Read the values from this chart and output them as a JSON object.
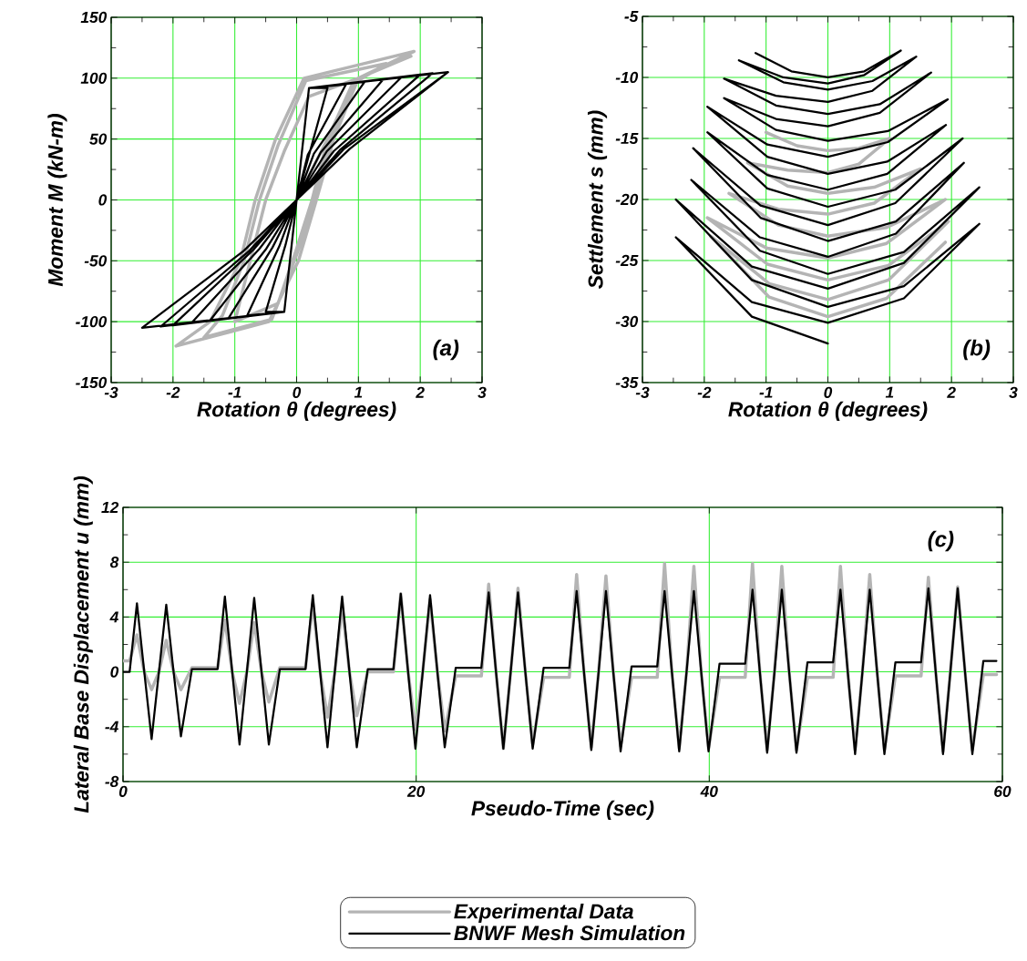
{
  "chart_data": [
    {
      "type": "line",
      "xlabel": "Rotation θ (degrees)",
      "ylabel": "Moment M (kN-m)",
      "xlim": [
        -3,
        3
      ],
      "ylim": [
        -150,
        150
      ],
      "xticks": [
        -3,
        -2,
        -1,
        0,
        1,
        2,
        3
      ],
      "yticks": [
        -150,
        -100,
        -50,
        0,
        50,
        100,
        150
      ],
      "grid": true,
      "annotations": [
        "(a)"
      ],
      "series": [
        {
          "color": "#b4b4b4",
          "x": [
            0,
            0.5,
            1.0,
            0.2,
            -0.2,
            -0.5,
            -0.75,
            -1.0,
            -0.3,
            0.0,
            0.25,
            0.5,
            0.9,
            1.45,
            0.15,
            -0.3,
            -0.6,
            -0.85,
            -1.2,
            -1.5,
            -0.4,
            0.0,
            0.3,
            0.55,
            1.0,
            1.9,
            0.12,
            -0.34,
            -0.67,
            -0.91,
            -1.4,
            -1.95,
            -0.45,
            0.03,
            0.32,
            0.6,
            1.0,
            1.85
          ],
          "values": [
            0,
            50,
            100,
            85,
            40,
            0,
            -50,
            -100,
            -85,
            -40,
            0,
            50,
            95,
            112,
            98,
            45,
            0,
            -50,
            -95,
            -113,
            -98,
            -45,
            0,
            50,
            100,
            122,
            100,
            50,
            0,
            -50,
            -100,
            -120,
            -100,
            -50,
            0,
            50,
            100,
            118
          ]
        },
        {
          "color": "#000000",
          "x": [
            0,
            0.5,
            0.2,
            0,
            -0.18,
            -0.5,
            -0.2,
            0,
            0.18,
            0.8,
            0.2,
            0,
            -0.28,
            -0.8,
            -0.2,
            0,
            0.28,
            1.1,
            0.2,
            0,
            -0.39,
            -1.1,
            -0.2,
            0,
            0.39,
            1.4,
            0.2,
            0,
            -0.49,
            -1.4,
            -0.2,
            0,
            0.49,
            1.7,
            0.2,
            0,
            -0.6,
            -1.7,
            -0.2,
            0,
            0.6,
            2.0,
            0.2,
            0,
            -0.7,
            -2.0,
            -0.2,
            0,
            0.7,
            2.2,
            0.2,
            0,
            -0.77,
            -2.2,
            -0.2,
            0,
            0.77,
            2.45,
            0.2,
            0,
            -0.86,
            -2.5,
            -0.2,
            0,
            0.86,
            2.45
          ],
          "values": [
            0,
            92,
            92,
            0,
            -37,
            -92,
            -92,
            0,
            37,
            95,
            92,
            0,
            -38,
            -95,
            -92,
            0,
            38,
            97,
            92,
            0,
            -39,
            -97,
            -92,
            0,
            39,
            99,
            92,
            0,
            -40,
            -99,
            -92,
            0,
            40,
            101,
            92,
            0,
            -40,
            -101,
            -92,
            0,
            40,
            103,
            92,
            0,
            -41,
            -103,
            -92,
            0,
            41,
            104,
            92,
            0,
            -42,
            -104,
            -92,
            0,
            42,
            105,
            92,
            0,
            -42,
            -105,
            -92,
            0,
            42,
            105
          ]
        }
      ]
    },
    {
      "type": "line",
      "xlabel": "Rotation θ (degrees)",
      "ylabel": "Settlement s (mm)",
      "xlim": [
        -3,
        3
      ],
      "ylim": [
        -35,
        -5
      ],
      "xticks": [
        -3,
        -2,
        -1,
        0,
        1,
        2,
        3
      ],
      "yticks": [
        -35,
        -30,
        -25,
        -20,
        -15,
        -10,
        -5
      ],
      "grid": true,
      "annotations": [
        "(b)"
      ],
      "series": [
        {
          "color": "#b4b4b4",
          "x": [
            -1.0,
            -0.5,
            0,
            0.5,
            1.0,
            0.5,
            0,
            -0.65,
            -1.3,
            -0.65,
            0,
            0.75,
            1.5,
            0.75,
            0,
            -0.8,
            -1.6,
            -0.8,
            0,
            0.95,
            1.9,
            0.95,
            0,
            -0.98,
            -1.95,
            -0.98,
            0,
            0.98,
            1.95,
            0.98,
            0,
            -0.95,
            -1.9,
            -0.95,
            0,
            0.95,
            1.9
          ],
          "values": [
            -14.5,
            -15.6,
            -16,
            -15.8,
            -15,
            -17.1,
            -17.8,
            -17.6,
            -17,
            -18.9,
            -19.5,
            -19,
            -17.5,
            -20.3,
            -21.2,
            -20.8,
            -19.5,
            -22.1,
            -23,
            -22.3,
            -20,
            -23.6,
            -24.8,
            -24,
            -21.5,
            -25.3,
            -26.6,
            -25.4,
            -21.8,
            -26.6,
            -28.2,
            -26.9,
            -23,
            -28,
            -29.6,
            -28.1,
            -23.5
          ]
        },
        {
          "color": "#000000",
          "x": [
            -1.17,
            -0.59,
            0,
            0.59,
            1.18,
            0.59,
            0,
            -0.72,
            -1.44,
            -0.72,
            0,
            0.72,
            1.43,
            0.72,
            0,
            -0.84,
            -1.68,
            -0.84,
            0,
            0.84,
            1.67,
            0.84,
            0,
            -0.84,
            -1.68,
            -0.84,
            0,
            0.97,
            1.94,
            0.97,
            0,
            -0.98,
            -1.95,
            -0.98,
            0,
            0.96,
            1.91,
            0.96,
            0,
            -0.98,
            -1.95,
            -0.98,
            0,
            1.09,
            2.18,
            1.09,
            0,
            -1.09,
            -2.18,
            -1.09,
            0,
            1.1,
            2.2,
            1.1,
            0,
            -1.1,
            -2.21,
            -1.1,
            0,
            1.23,
            2.45,
            1.23,
            0,
            -1.23,
            -2.46,
            -1.23,
            0,
            1.23,
            2.45,
            1.23,
            0,
            -1.23,
            -2.46,
            -1.23,
            0
          ],
          "values": [
            -8.0,
            -9.5,
            -10,
            -9.5,
            -7.8,
            -9.8,
            -10.5,
            -10.0,
            -8.6,
            -10.4,
            -11,
            -10.3,
            -8.3,
            -11.1,
            -12,
            -11.5,
            -10.1,
            -12.3,
            -13,
            -12.2,
            -9.6,
            -12.9,
            -14,
            -13.4,
            -11.7,
            -14.3,
            -15.2,
            -14.4,
            -11.8,
            -15.3,
            -16.5,
            -15.5,
            -12.4,
            -16.5,
            -17.9,
            -16.9,
            -13.9,
            -17.9,
            -19.2,
            -18.0,
            -14.5,
            -19.1,
            -20.6,
            -19.2,
            -15.0,
            -20.3,
            -22.1,
            -20.5,
            -15.8,
            -21.5,
            -23.4,
            -21.8,
            -17.0,
            -22.8,
            -24.7,
            -23.1,
            -18.4,
            -24.2,
            -26.1,
            -24.3,
            -19.0,
            -25.2,
            -27.3,
            -25.5,
            -20.0,
            -26.6,
            -28.8,
            -27.1,
            -22.0,
            -28.1,
            -30.1,
            -28.4,
            -23.1,
            -29.6,
            -31.8
          ]
        }
      ]
    },
    {
      "type": "line",
      "xlabel": "Pseudo-Time (sec)",
      "ylabel": "Lateral Base Displacement u (mm)",
      "xlim": [
        0,
        60
      ],
      "ylim": [
        -8,
        12
      ],
      "xticks": [
        0,
        20,
        40,
        60
      ],
      "yticks": [
        -8,
        -4,
        0,
        4,
        8,
        12
      ],
      "grid": true,
      "legend": "bottom",
      "annotations": [
        "(c)"
      ],
      "x": [
        0,
        0.45,
        0.95,
        1.45,
        1.95,
        2.45,
        2.95,
        3.45,
        3.95,
        4.7,
        6,
        6.45,
        6.95,
        7.45,
        7.95,
        8.45,
        8.95,
        9.45,
        9.95,
        10.7,
        12,
        12.45,
        12.95,
        13.45,
        13.95,
        14.45,
        14.95,
        15.45,
        15.95,
        16.7,
        18,
        18.45,
        18.95,
        19.45,
        19.95,
        20.45,
        20.95,
        21.45,
        21.95,
        22.7,
        24,
        24.45,
        24.95,
        25.45,
        25.95,
        26.45,
        26.95,
        27.45,
        27.95,
        28.7,
        30,
        30.45,
        30.95,
        31.45,
        31.95,
        32.45,
        32.95,
        33.45,
        33.95,
        34.7,
        36,
        36.45,
        36.95,
        37.45,
        37.95,
        38.45,
        38.95,
        39.45,
        39.95,
        40.7,
        42,
        42.45,
        42.95,
        43.45,
        43.95,
        44.45,
        44.95,
        45.45,
        45.95,
        46.7,
        48,
        48.45,
        48.95,
        49.45,
        49.95,
        50.45,
        50.95,
        51.45,
        51.95,
        52.7,
        54,
        54.45,
        54.95,
        55.45,
        55.95,
        56.45,
        56.95,
        57.45,
        57.95,
        58.7,
        59.6
      ],
      "series": [
        {
          "name": "Experimental Data",
          "color": "#b4b4b4",
          "values": [
            0.8,
            0.8,
            2.7,
            0,
            -1.3,
            0,
            2.3,
            0,
            -1.3,
            0.3,
            0.3,
            0.3,
            3.8,
            0,
            -2.3,
            0,
            3.6,
            0,
            -2.2,
            0.3,
            0.3,
            0.3,
            5.0,
            0,
            -3.3,
            0,
            4.7,
            0,
            -3.2,
            0,
            0,
            0,
            5.7,
            0,
            -4.2,
            0,
            5.3,
            0,
            -4.3,
            -0.3,
            -0.3,
            -0.3,
            6.4,
            0,
            -5.6,
            0,
            6.1,
            0,
            -5.3,
            -0.4,
            -0.4,
            -0.4,
            7.1,
            0,
            -5.5,
            0,
            7.0,
            0,
            -5.4,
            -0.4,
            -0.4,
            -0.4,
            7.9,
            0,
            -5.6,
            0,
            7.7,
            0,
            -5.6,
            -0.4,
            -0.4,
            -0.4,
            7.9,
            0,
            -5.7,
            0,
            7.7,
            0,
            -5.7,
            -0.4,
            -0.4,
            -0.4,
            7.7,
            0,
            -5.7,
            0,
            7.1,
            0,
            -5.7,
            -0.3,
            -0.3,
            -0.3,
            6.9,
            0,
            -5.8,
            0,
            6.2,
            0,
            -5.7,
            -0.2,
            -0.2
          ]
        },
        {
          "name": "BNWF Mesh Simulation",
          "color": "#000000",
          "values": [
            0,
            0,
            5.0,
            0,
            -4.9,
            0,
            4.9,
            0,
            -4.7,
            0.2,
            0.2,
            0.2,
            5.5,
            0,
            -5.3,
            0,
            5.4,
            0,
            -5.3,
            0.2,
            0.2,
            0.2,
            5.6,
            0,
            -5.5,
            0,
            5.5,
            0,
            -5.5,
            0.2,
            0.2,
            0.2,
            5.7,
            0,
            -5.6,
            0,
            5.6,
            0,
            -5.5,
            0.3,
            0.3,
            0.3,
            5.8,
            0,
            -5.6,
            0,
            5.8,
            0,
            -5.6,
            0.3,
            0.3,
            0.3,
            5.9,
            0,
            -5.7,
            0,
            5.9,
            0,
            -5.8,
            0.4,
            0.4,
            0.4,
            5.9,
            0,
            -5.8,
            0,
            5.9,
            0,
            -5.8,
            0.6,
            0.6,
            0.6,
            6.0,
            0,
            -5.9,
            0,
            6.0,
            0,
            -5.9,
            0.7,
            0.7,
            0.7,
            6.0,
            0,
            -6.0,
            0,
            6.0,
            0,
            -6.0,
            0.7,
            0.7,
            0.7,
            6.1,
            0,
            -6.0,
            0,
            6.1,
            0,
            -6.0,
            0.8,
            0.8
          ]
        }
      ]
    }
  ]
}
